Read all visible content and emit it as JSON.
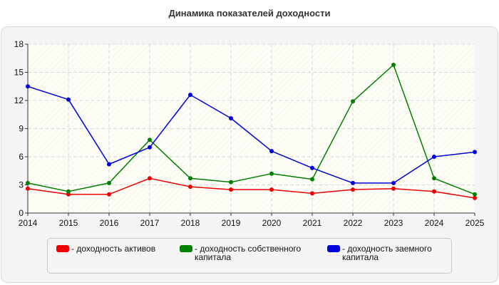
{
  "chart_data": {
    "type": "line",
    "title": "Динамика показателей доходности",
    "xlabel": "",
    "ylabel": "",
    "x": [
      "2014",
      "2015",
      "2016",
      "2017",
      "2018",
      "2019",
      "2020",
      "2021",
      "2022",
      "2023",
      "2024",
      "2025"
    ],
    "ylim": [
      0,
      18
    ],
    "yticks": [
      0,
      3,
      6,
      9,
      12,
      15,
      18
    ],
    "grid": true,
    "legend_position": "bottom",
    "series": [
      {
        "name": "- доходность активов",
        "color": "#ee0000",
        "values": [
          2.6,
          2.0,
          2.0,
          3.7,
          2.8,
          2.5,
          2.5,
          2.1,
          2.5,
          2.6,
          2.3,
          1.6
        ]
      },
      {
        "name": "- доходность собственного\nкапитала",
        "color": "#008000",
        "values": [
          3.2,
          2.3,
          3.2,
          7.8,
          3.7,
          3.3,
          4.2,
          3.6,
          11.9,
          15.8,
          3.7,
          2.0
        ]
      },
      {
        "name": "- доходность заемного\nкапитала",
        "color": "#0000dd",
        "values": [
          13.5,
          12.1,
          5.2,
          7.0,
          12.6,
          10.1,
          6.6,
          4.8,
          3.2,
          3.2,
          6.0,
          6.5
        ]
      }
    ]
  }
}
